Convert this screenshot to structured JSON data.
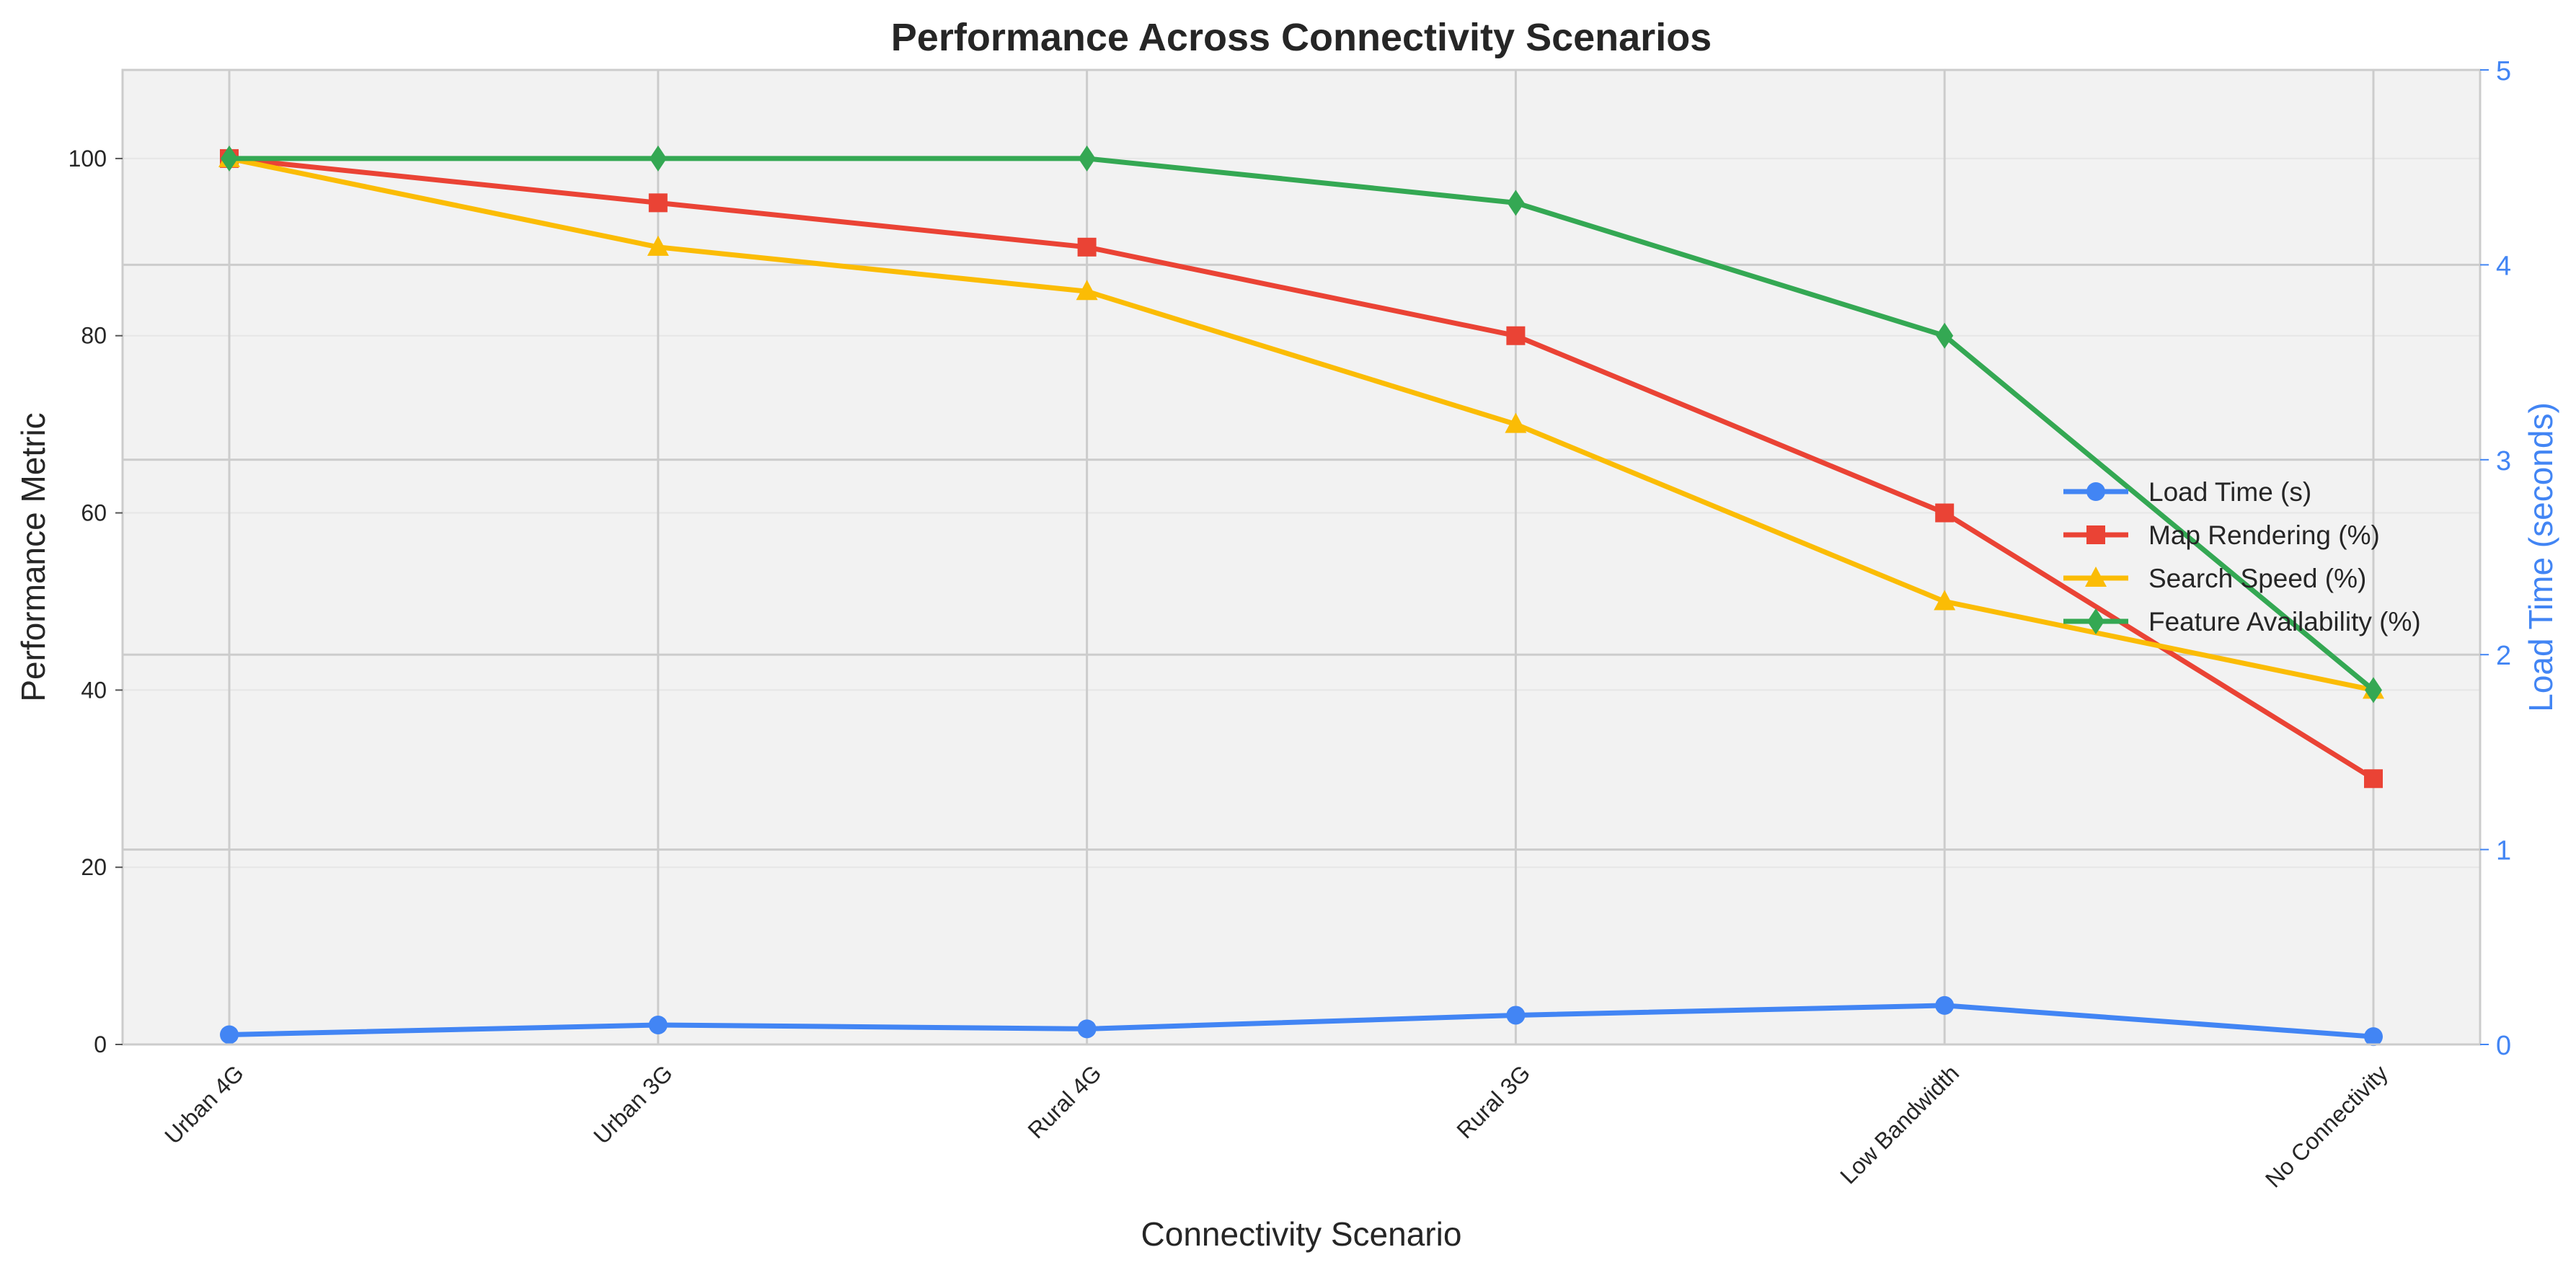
{
  "chart_data": {
    "type": "line",
    "title": "Performance Across Connectivity Scenarios",
    "xlabel": "Connectivity Scenario",
    "ylabel": "Performance Metric",
    "y2label": "Load Time (seconds)",
    "categories": [
      "Urban 4G",
      "Urban 3G",
      "Rural 4G",
      "Rural 3G",
      "Low Bandwidth",
      "No Connectivity"
    ],
    "ylim": [
      0,
      110
    ],
    "y2lim": [
      0,
      5
    ],
    "yticks": [
      "0",
      "20",
      "40",
      "60",
      "80",
      "100"
    ],
    "y2ticks": [
      "0",
      "1",
      "2",
      "3",
      "4",
      "5"
    ],
    "grid": true,
    "legend_position": "center-right",
    "series": [
      {
        "name": "Load Time (s)",
        "axis": "right",
        "marker": "circle",
        "color": "#4285F4",
        "values": [
          0.05,
          0.1,
          0.08,
          0.15,
          0.2,
          0.04
        ]
      },
      {
        "name": "Map Rendering (%)",
        "axis": "left",
        "marker": "square",
        "color": "#EA4335",
        "values": [
          100,
          95,
          90,
          80,
          60,
          30
        ]
      },
      {
        "name": "Search Speed (%)",
        "axis": "left",
        "marker": "triangle",
        "color": "#FBBC05",
        "values": [
          100,
          90,
          85,
          70,
          50,
          40
        ]
      },
      {
        "name": "Feature Availability (%)",
        "axis": "left",
        "marker": "diamond",
        "color": "#34A853",
        "values": [
          100,
          100,
          100,
          95,
          80,
          40
        ]
      }
    ]
  }
}
